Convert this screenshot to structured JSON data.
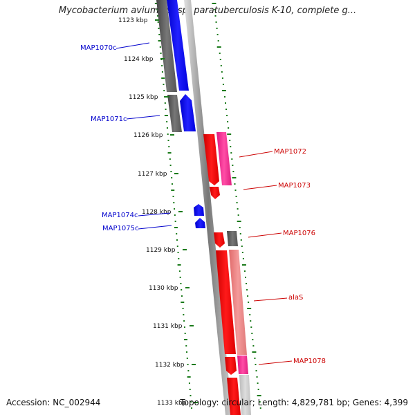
{
  "title": "Mycobacterium avium subsp. paratuberculosis K-10, complete g...",
  "footer": {
    "accession": "Accession: NC_002944",
    "summary": "Topology: circular; Length: 4,829,781 bp; Genes: 4,399"
  },
  "ruler": {
    "labels": [
      "1123 kbp",
      "1124 kbp",
      "1125 kbp",
      "1126 kbp",
      "1127 kbp",
      "1128 kbp",
      "1129 kbp",
      "1130 kbp",
      "1131 kbp",
      "1132 kbp",
      "1133 kbp"
    ]
  },
  "genes_minus_strand": [
    {
      "name": "MAP1070c",
      "color": "#0000cc"
    },
    {
      "name": "MAP1071c",
      "color": "#0000cc"
    },
    {
      "name": "MAP1074c",
      "color": "#0000cc"
    },
    {
      "name": "MAP1075c",
      "color": "#0000cc"
    }
  ],
  "genes_plus_strand": [
    {
      "name": "MAP1072",
      "color": "#cc0000"
    },
    {
      "name": "MAP1073",
      "color": "#cc0000"
    },
    {
      "name": "MAP1076",
      "color": "#cc0000"
    },
    {
      "name": "alaS",
      "color": "#cc0000"
    },
    {
      "name": "MAP1078",
      "color": "#cc0000"
    }
  ],
  "colors": {
    "minus_cds": "#0000ff",
    "plus_cds": "#ff0000",
    "gray_track": "#666666",
    "magenta_track": "#ff3399",
    "pink_track": "#f08080",
    "gc_skew": "#1a7a1a"
  }
}
